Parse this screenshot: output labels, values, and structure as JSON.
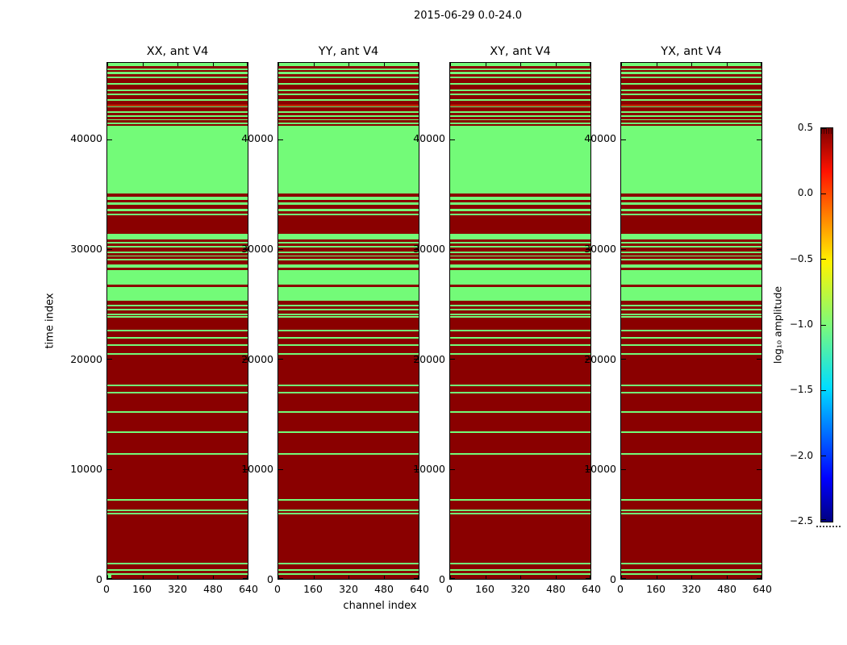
{
  "chart_data": {
    "type": "heatmap",
    "suptitle": "2015-06-29 0.0-24.0",
    "xlabel": "channel index",
    "ylabel": "time index",
    "panels": [
      {
        "title": "XX, ant V4",
        "pol": "xx",
        "corner_marker": true
      },
      {
        "title": "YY, ant V4",
        "pol": "yy",
        "corner_marker": false
      },
      {
        "title": "XY, ant V4",
        "pol": "xy",
        "corner_marker": false
      },
      {
        "title": "YX, ant V4",
        "pol": "yx",
        "corner_marker": false
      }
    ],
    "x_tick_values": [
      0,
      160,
      320,
      480,
      640
    ],
    "y_tick_values": [
      0,
      10000,
      20000,
      30000,
      40000
    ],
    "x_range": [
      0,
      640
    ],
    "y_range": [
      0,
      46950
    ],
    "grid": false,
    "colorbar": {
      "label": "log₁₀ amplitude",
      "tick_labels": [
        "0.5",
        "0.0",
        "−0.5",
        "−1.0",
        "−1.5",
        "−2.0",
        "−2.5"
      ],
      "vmin": -2.5,
      "vmax": 0.5,
      "colormap": "jet",
      "gradient_top_to_bottom": [
        "#7f0000",
        "#ff1300",
        "#fff300",
        "#7dfa7a",
        "#00ddff",
        "#0000ff",
        "#000080"
      ],
      "gradient_stops_pct": [
        0,
        11,
        34,
        50,
        66,
        89,
        100
      ]
    },
    "value_colors": {
      "r": "#8a0000",
      "g": "#73fb78",
      "o": "#e84800"
    },
    "bands_fraction_top_bottom": [
      [
        0.0,
        0.0062,
        "g"
      ],
      [
        0.0104,
        0.0136,
        "g"
      ],
      [
        0.0171,
        0.0218,
        "g"
      ],
      [
        0.026,
        0.0291,
        "g"
      ],
      [
        0.0389,
        0.0416,
        "g"
      ],
      [
        0.0514,
        0.054,
        "g"
      ],
      [
        0.0587,
        0.0618,
        "g"
      ],
      [
        0.0701,
        0.0732,
        "g"
      ],
      [
        0.0805,
        0.083,
        "o"
      ],
      [
        0.0836,
        0.0861,
        "g"
      ],
      [
        0.0939,
        0.097,
        "g"
      ],
      [
        0.1012,
        0.1043,
        "g"
      ],
      [
        0.1086,
        0.1117,
        "g"
      ],
      [
        0.1153,
        0.1184,
        "g"
      ],
      [
        0.1226,
        0.2539,
        "g"
      ],
      [
        0.2586,
        0.2653,
        "g"
      ],
      [
        0.271,
        0.2746,
        "g"
      ],
      [
        0.2835,
        0.2877,
        "g"
      ],
      [
        0.2923,
        0.2954,
        "g"
      ],
      [
        0.3313,
        0.3422,
        "g"
      ],
      [
        0.3468,
        0.35,
        "g"
      ],
      [
        0.354,
        0.3571,
        "g"
      ],
      [
        0.3649,
        0.368,
        "g"
      ],
      [
        0.3727,
        0.3758,
        "g"
      ],
      [
        0.38,
        0.3836,
        "g"
      ],
      [
        0.3914,
        0.3976,
        "g"
      ],
      [
        0.4023,
        0.4294,
        "g"
      ],
      [
        0.4346,
        0.4606,
        "g"
      ],
      [
        0.4688,
        0.4724,
        "g"
      ],
      [
        0.4761,
        0.4792,
        "g"
      ],
      [
        0.4854,
        0.4886,
        "g"
      ],
      [
        0.4906,
        0.4937,
        "g"
      ],
      [
        0.5171,
        0.5202,
        "g"
      ],
      [
        0.5316,
        0.5347,
        "g"
      ],
      [
        0.5456,
        0.5487,
        "g"
      ],
      [
        0.5627,
        0.5658,
        "g"
      ],
      [
        0.6235,
        0.6266,
        "g"
      ],
      [
        0.6375,
        0.6406,
        "g"
      ],
      [
        0.6755,
        0.6786,
        "g"
      ],
      [
        0.7133,
        0.7165,
        "g"
      ],
      [
        0.7565,
        0.7596,
        "g"
      ],
      [
        0.8457,
        0.8488,
        "g"
      ],
      [
        0.8655,
        0.8686,
        "g"
      ],
      [
        0.8717,
        0.8748,
        "g"
      ],
      [
        0.9688,
        0.9719,
        "g"
      ],
      [
        0.9808,
        0.9839,
        "g"
      ],
      [
        0.9885,
        0.9917,
        "g"
      ]
    ]
  }
}
